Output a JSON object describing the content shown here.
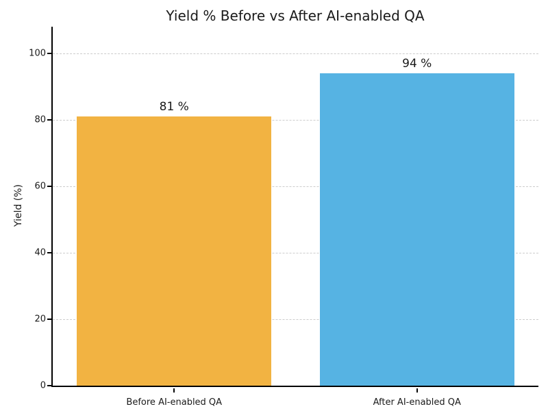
{
  "chart_data": {
    "type": "bar",
    "title": "Yield % Before vs After AI-enabled QA",
    "xlabel": "",
    "ylabel": "Yield (%)",
    "categories": [
      "Before AI-enabled QA",
      "After AI-enabled QA"
    ],
    "values": [
      81,
      94
    ],
    "value_labels": [
      "81 %",
      "94 %"
    ],
    "bar_colors": [
      "#F2B342",
      "#56B3E3"
    ],
    "ylim": [
      0,
      108
    ],
    "yticks": [
      0,
      20,
      40,
      60,
      80,
      100
    ],
    "grid": "horizontal-dashed",
    "legend": "none",
    "spines": [
      "left",
      "bottom"
    ]
  },
  "colors": {
    "background": "#ffffff",
    "gridline": "#cccccc",
    "spine": "#000000",
    "text": "#1a1a1a",
    "bar_before": "#F2B342",
    "bar_after": "#56B3E3"
  }
}
